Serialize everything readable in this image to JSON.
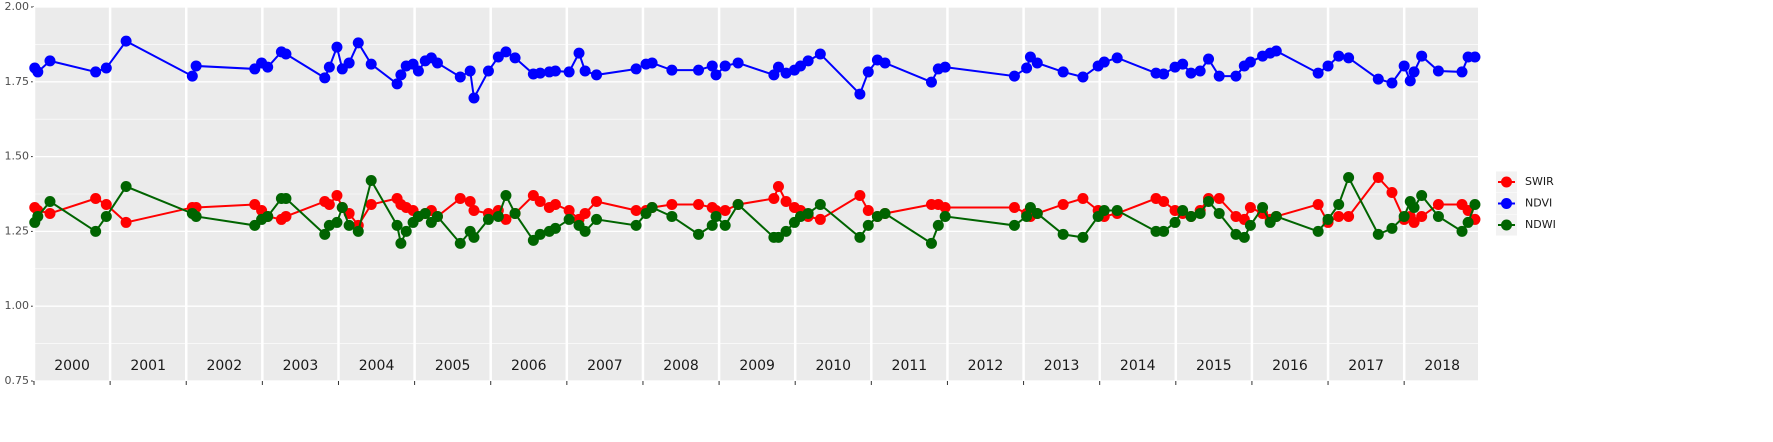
{
  "chart_data": {
    "type": "line",
    "x": [
      2000.01,
      2000.05,
      2000.21,
      2000.81,
      2000.95,
      2001.21,
      2002.08,
      2002.13,
      2002.9,
      2002.99,
      2003.07,
      2003.25,
      2003.31,
      2003.82,
      2003.88,
      2003.98,
      2004.05,
      2004.14,
      2004.26,
      2004.43,
      2004.77,
      2004.82,
      2004.89,
      2004.98,
      2005.05,
      2005.14,
      2005.22,
      2005.3,
      2005.6,
      2005.73,
      2005.78,
      2005.97,
      2006.1,
      2006.2,
      2006.32,
      2006.56,
      2006.65,
      2006.77,
      2006.85,
      2007.03,
      2007.16,
      2007.24,
      2007.39,
      2007.91,
      2008.04,
      2008.12,
      2008.38,
      2008.73,
      2008.91,
      2008.96,
      2009.08,
      2009.25,
      2009.72,
      2009.78,
      2009.88,
      2009.99,
      2010.07,
      2010.17,
      2010.33,
      2010.85,
      2010.96,
      2011.08,
      2011.18,
      2011.79,
      2011.88,
      2011.97,
      2012.88,
      2013.04,
      2013.09,
      2013.18,
      2013.52,
      2013.78,
      2013.98,
      2014.06,
      2014.23,
      2014.74,
      2014.84,
      2014.99,
      2015.09,
      2015.2,
      2015.32,
      2015.43,
      2015.57,
      2015.79,
      2015.9,
      2015.98,
      2016.14,
      2016.24,
      2016.32,
      2016.87,
      2017.0,
      2017.14,
      2017.27,
      2017.66,
      2017.84,
      2018.0,
      2018.08,
      2018.13,
      2018.23,
      2018.45,
      2018.76,
      2018.84,
      2018.93
    ],
    "series": [
      {
        "name": "SWIR",
        "color": "#ff0000",
        "values": [
          1.33,
          1.32,
          1.31,
          1.36,
          1.34,
          1.28,
          1.33,
          1.33,
          1.34,
          1.32,
          1.3,
          1.29,
          1.3,
          1.35,
          1.34,
          1.37,
          1.33,
          1.31,
          1.27,
          1.34,
          1.36,
          1.34,
          1.33,
          1.32,
          1.3,
          1.31,
          1.32,
          1.3,
          1.36,
          1.35,
          1.32,
          1.31,
          1.32,
          1.29,
          1.31,
          1.37,
          1.35,
          1.33,
          1.34,
          1.32,
          1.29,
          1.31,
          1.35,
          1.32,
          1.32,
          1.33,
          1.34,
          1.34,
          1.33,
          1.32,
          1.32,
          1.34,
          1.36,
          1.4,
          1.35,
          1.33,
          1.32,
          1.3,
          1.29,
          1.37,
          1.32,
          1.3,
          1.31,
          1.34,
          1.34,
          1.33,
          1.33,
          1.31,
          1.3,
          1.31,
          1.34,
          1.36,
          1.32,
          1.3,
          1.31,
          1.36,
          1.35,
          1.32,
          1.31,
          1.3,
          1.32,
          1.36,
          1.36,
          1.3,
          1.29,
          1.33,
          1.31,
          1.29,
          1.3,
          1.34,
          1.28,
          1.3,
          1.3,
          1.43,
          1.38,
          1.29,
          1.3,
          1.28,
          1.3,
          1.34,
          1.34,
          1.32,
          1.29
        ]
      },
      {
        "name": "NDVI",
        "color": "#0000ff",
        "values": [
          1.796,
          1.783,
          1.82,
          1.783,
          1.796,
          1.886,
          1.769,
          1.803,
          1.793,
          1.813,
          1.799,
          1.85,
          1.843,
          1.763,
          1.799,
          1.866,
          1.793,
          1.813,
          1.88,
          1.809,
          1.743,
          1.773,
          1.803,
          1.809,
          1.786,
          1.82,
          1.83,
          1.813,
          1.766,
          1.786,
          1.696,
          1.786,
          1.833,
          1.85,
          1.83,
          1.776,
          1.779,
          1.783,
          1.786,
          1.783,
          1.846,
          1.786,
          1.773,
          1.793,
          1.809,
          1.813,
          1.789,
          1.789,
          1.803,
          1.773,
          1.803,
          1.813,
          1.773,
          1.799,
          1.779,
          1.789,
          1.803,
          1.82,
          1.843,
          1.709,
          1.783,
          1.823,
          1.813,
          1.749,
          1.793,
          1.799,
          1.769,
          1.796,
          1.833,
          1.813,
          1.783,
          1.766,
          1.803,
          1.816,
          1.83,
          1.779,
          1.776,
          1.799,
          1.809,
          1.779,
          1.786,
          1.826,
          1.769,
          1.769,
          1.803,
          1.816,
          1.836,
          1.846,
          1.853,
          1.779,
          1.803,
          1.836,
          1.83,
          1.759,
          1.746,
          1.803,
          1.753,
          1.783,
          1.836,
          1.786,
          1.783,
          1.833,
          1.833
        ]
      },
      {
        "name": "NDWI",
        "color": "#006400",
        "values": [
          1.28,
          1.3,
          1.35,
          1.25,
          1.3,
          1.4,
          1.31,
          1.3,
          1.27,
          1.29,
          1.3,
          1.36,
          1.36,
          1.24,
          1.27,
          1.28,
          1.33,
          1.27,
          1.25,
          1.42,
          1.27,
          1.21,
          1.25,
          1.28,
          1.3,
          1.31,
          1.28,
          1.3,
          1.21,
          1.25,
          1.23,
          1.29,
          1.3,
          1.37,
          1.31,
          1.22,
          1.24,
          1.25,
          1.26,
          1.29,
          1.27,
          1.25,
          1.29,
          1.27,
          1.31,
          1.33,
          1.3,
          1.24,
          1.27,
          1.3,
          1.27,
          1.34,
          1.23,
          1.23,
          1.25,
          1.28,
          1.3,
          1.31,
          1.34,
          1.23,
          1.27,
          1.3,
          1.31,
          1.21,
          1.27,
          1.3,
          1.27,
          1.3,
          1.33,
          1.31,
          1.24,
          1.23,
          1.3,
          1.32,
          1.32,
          1.25,
          1.25,
          1.28,
          1.32,
          1.3,
          1.31,
          1.35,
          1.31,
          1.24,
          1.23,
          1.27,
          1.33,
          1.28,
          1.3,
          1.25,
          1.29,
          1.34,
          1.43,
          1.24,
          1.26,
          1.3,
          1.35,
          1.33,
          1.37,
          1.3,
          1.25,
          1.28,
          1.34
        ]
      }
    ],
    "xlim": [
      2000,
      2018.97
    ],
    "ylim": [
      0.75,
      2.0
    ],
    "yticks": [
      0.75,
      {
        "value": 1.0,
        "label": "1.00"
      },
      1.25,
      {
        "value": 1.5,
        "label": "1.50"
      },
      1.75,
      {
        "value": 2.0,
        "label": "2.00"
      }
    ],
    "yminor": [
      0.875,
      1.125,
      1.375,
      1.625,
      1.875
    ],
    "xticks": [
      {
        "value": 2000.5,
        "label": "2000"
      },
      {
        "value": 2001.5,
        "label": "2001"
      },
      {
        "value": 2002.5,
        "label": "2002"
      },
      {
        "value": 2003.5,
        "label": "2003"
      },
      {
        "value": 2004.5,
        "label": "2004"
      },
      {
        "value": 2005.5,
        "label": "2005"
      },
      {
        "value": 2006.5,
        "label": "2006"
      },
      {
        "value": 2007.5,
        "label": "2007"
      },
      {
        "value": 2008.5,
        "label": "2008"
      },
      {
        "value": 2009.5,
        "label": "2009"
      },
      {
        "value": 2010.5,
        "label": "2010"
      },
      {
        "value": 2011.5,
        "label": "2011"
      },
      {
        "value": 2012.5,
        "label": "2012"
      },
      {
        "value": 2013.5,
        "label": "2013"
      },
      {
        "value": 2014.5,
        "label": "2014"
      },
      {
        "value": 2015.5,
        "label": "2015"
      },
      {
        "value": 2016.5,
        "label": "2016"
      },
      {
        "value": 2017.5,
        "label": "2017"
      },
      {
        "value": 2018.5,
        "label": "2018"
      }
    ],
    "xgrid": [
      2000,
      2001,
      2002,
      2003,
      2004,
      2005,
      2006,
      2007,
      2008,
      2009,
      2010,
      2011,
      2012,
      2013,
      2014,
      2015,
      2016,
      2017,
      2018
    ],
    "grid": true,
    "legend": "right"
  }
}
